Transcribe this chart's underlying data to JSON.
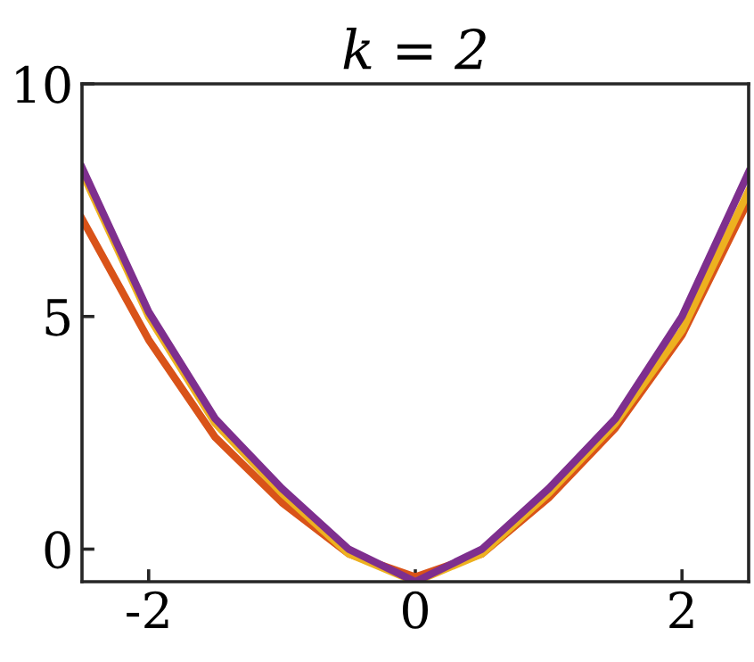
{
  "chart_data": {
    "type": "line",
    "title": "k = 2",
    "x": [
      -2.5,
      -2,
      -1.5,
      -1,
      -0.5,
      0,
      0.5,
      1,
      1.5,
      2,
      2.5
    ],
    "series": [
      {
        "color": "#d95319",
        "values": [
          7.1,
          4.5,
          2.4,
          1.0,
          -0.1,
          -0.6,
          -0.1,
          1.1,
          2.6,
          4.6,
          7.5
        ]
      },
      {
        "color": "#edb120",
        "values": [
          8.1,
          5.0,
          2.7,
          1.2,
          -0.1,
          -0.7,
          -0.1,
          1.2,
          2.7,
          4.7,
          7.7
        ]
      },
      {
        "color": "#7e2f8e",
        "values": [
          8.2,
          5.1,
          2.8,
          1.3,
          0.0,
          -0.7,
          0.0,
          1.3,
          2.8,
          5.0,
          8.1
        ]
      }
    ],
    "xlim": [
      -2.5,
      2.5
    ],
    "ylim": [
      -0.7,
      10
    ],
    "xticks": [
      -2,
      0,
      2
    ],
    "yticks": [
      0,
      5,
      10
    ],
    "grid": false,
    "legend": false,
    "marker": "none",
    "line_style": "solid"
  }
}
